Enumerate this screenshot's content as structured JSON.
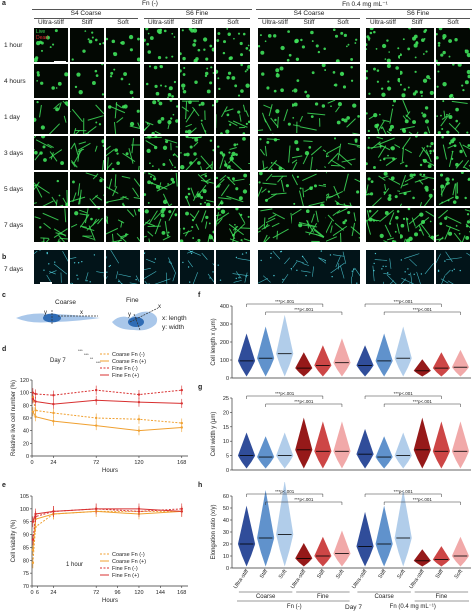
{
  "header": {
    "fn_neg": "Fn (-)",
    "fn_pos": "Fn 0.4 mg mL⁻¹",
    "s4": "S4 Coarse",
    "s6": "S6 Fine",
    "s4b": "S4 Coarse",
    "s6b": "S6 Fine",
    "cols": [
      "Ultra-stiff",
      "Stiff",
      "Soft",
      "Ultra-stiff",
      "Stiff",
      "Soft",
      "Ultra-stiff",
      "Stiff",
      "Soft",
      "Ultra-stiff",
      "Stiff",
      "Soft"
    ]
  },
  "legend_live": "Live",
  "legend_dead": "Dead",
  "rows": [
    "1 hour",
    "4 hours",
    "1 day",
    "3 days",
    "5 days",
    "7 days"
  ],
  "row_b": "7 days",
  "panel_labels": {
    "a": "a",
    "b": "b",
    "c": "c",
    "d": "d",
    "e": "e",
    "f": "f",
    "g": "g",
    "h": "h"
  },
  "schematic": {
    "coarse": "Coarse",
    "fine": "Fine",
    "legend_x": "x: length",
    "legend_y": "y: width",
    "x": "x",
    "y": "y"
  },
  "colors": {
    "coarse_neg": "#f0a030",
    "coarse_pos": "#f0a030",
    "fine_neg": "#d83030",
    "fine_pos": "#d83030",
    "violin": [
      "#1a3a8f",
      "#4f86c6",
      "#a8c8e8",
      "#8b0000",
      "#c83232",
      "#f0a0a0"
    ]
  },
  "chart_d": {
    "type": "line",
    "ylabel": "Relative live cell number (%)",
    "xlabel": "Hours",
    "day_label": "Day 7",
    "ylim": [
      0,
      120
    ],
    "yticks": [
      "0",
      "20",
      "40",
      "60",
      "80",
      "100",
      "120"
    ],
    "xticks": [
      "0",
      "24",
      "72",
      "120",
      "168"
    ],
    "legend": [
      "Coarse Fn (-)",
      "Coarse Fn (+)",
      "Fine Fn (-)",
      "Fine Fn (+)"
    ],
    "x": [
      1,
      4,
      24,
      72,
      120,
      168
    ],
    "series": [
      {
        "name": "Coarse Fn (-)",
        "values": [
          93,
          72,
          68,
          60,
          58,
          52
        ],
        "dashed": true
      },
      {
        "name": "Coarse Fn (+)",
        "values": [
          70,
          62,
          55,
          48,
          40,
          45
        ],
        "dashed": false
      },
      {
        "name": "Fine Fn (-)",
        "values": [
          100,
          98,
          96,
          104,
          97,
          104
        ],
        "dashed": true
      },
      {
        "name": "Fine Fn (+)",
        "values": [
          90,
          86,
          82,
          88,
          85,
          83
        ],
        "dashed": false
      }
    ],
    "sig": [
      "***",
      "***",
      "**",
      "***"
    ]
  },
  "chart_e": {
    "type": "line",
    "ylabel": "Cell viability (%)",
    "xlabel": "Hours",
    "ylim": [
      70,
      105
    ],
    "yticks": [
      "70",
      "75",
      "80",
      "85",
      "90",
      "95",
      "100",
      "105"
    ],
    "xticks": [
      "0",
      "6",
      "24",
      "72",
      "96",
      "120",
      "144",
      "168"
    ],
    "legend": [
      "Coarse Fn (-)",
      "Coarse Fn (+)",
      "Fine Fn (-)",
      "Fine Fn (+)"
    ],
    "time_label": "1 hour",
    "x": [
      1,
      4,
      24,
      72,
      120,
      168
    ],
    "series": [
      {
        "name": "Coarse Fn (-)",
        "values": [
          79,
          93,
          98,
          99,
          99,
          99
        ],
        "dashed": true
      },
      {
        "name": "Coarse Fn (+)",
        "values": [
          84,
          96,
          98,
          99,
          98,
          99
        ],
        "dashed": false
      },
      {
        "name": "Fine Fn (-)",
        "values": [
          88,
          97,
          99,
          100,
          99,
          100
        ],
        "dashed": true
      },
      {
        "name": "Fine Fn (+)",
        "values": [
          95,
          98,
          99,
          100,
          100,
          99
        ],
        "dashed": false
      }
    ]
  },
  "chart_f": {
    "type": "violin",
    "ylabel": "Cell length x (μm)",
    "ylim": [
      0,
      400
    ],
    "yticks": [
      "0",
      "100",
      "200",
      "300",
      "400"
    ],
    "medians": [
      95,
      110,
      135,
      55,
      70,
      85,
      70,
      95,
      110,
      40,
      55,
      60
    ],
    "sig": "***p<.001"
  },
  "chart_g": {
    "type": "violin",
    "ylabel": "Cell width y (μm)",
    "ylim": [
      0,
      25
    ],
    "yticks": [
      "0",
      "5",
      "10",
      "15",
      "20",
      "25"
    ],
    "medians": [
      5,
      4.5,
      5,
      7,
      6.5,
      6.5,
      5.5,
      4.5,
      5,
      7,
      6.5,
      6.5
    ],
    "sig": "***p<.001"
  },
  "chart_h": {
    "type": "violin",
    "ylabel": "Elongation ratio (x/y)",
    "ylim": [
      0,
      60
    ],
    "yticks": [
      "0",
      "10",
      "20",
      "30",
      "40",
      "50",
      "60"
    ],
    "medians": [
      20,
      25,
      28,
      8,
      10,
      12,
      18,
      20,
      25,
      6,
      7,
      10
    ],
    "sig": "***p<.001"
  },
  "xaxis_bottom": {
    "cats": [
      "Ultra-stiff",
      "Stiff",
      "Soft",
      "Ultra-stiff",
      "Stiff",
      "Soft",
      "Ultra-stiff",
      "Stiff",
      "Soft",
      "Ultra-stiff",
      "Stiff",
      "Soft"
    ],
    "groups": [
      "Coarse",
      "Fine",
      "Coarse",
      "Fine"
    ],
    "fn_neg": "Fn (-)",
    "day": "Day 7",
    "fn_pos": "Fn (0.4 mg mL⁻¹)"
  }
}
